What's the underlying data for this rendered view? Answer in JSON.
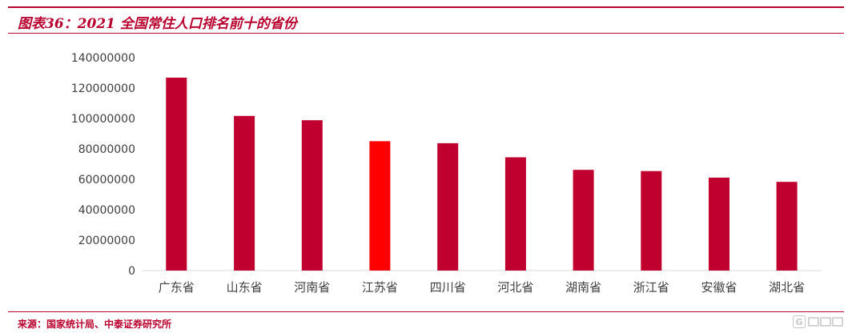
{
  "header": {
    "title": "图表36：2021 全国常住人口排名前十的省份"
  },
  "footer": {
    "source": "来源：国家统计局、中泰证券研究所",
    "watermark_icon": "g-logo-icon"
  },
  "colors": {
    "bar": "#c0002f",
    "highlight": "#ff0000",
    "brand": "#b8002e"
  },
  "chart_data": {
    "type": "bar",
    "title": "",
    "xlabel": "",
    "ylabel": "",
    "categories": [
      "广东省",
      "山东省",
      "河南省",
      "江苏省",
      "四川省",
      "河北省",
      "湖南省",
      "浙江省",
      "安徽省",
      "湖北省"
    ],
    "values": [
      126840000,
      101700000,
      98830000,
      85050000,
      83720000,
      74480000,
      66220000,
      65400000,
      61130000,
      58300000
    ],
    "highlight_category": "江苏省",
    "ylim": [
      0,
      140000000
    ],
    "yticks": [
      "0",
      "20000000",
      "40000000",
      "60000000",
      "80000000",
      "100000000",
      "120000000",
      "140000000"
    ],
    "grid": false,
    "legend": "none"
  }
}
